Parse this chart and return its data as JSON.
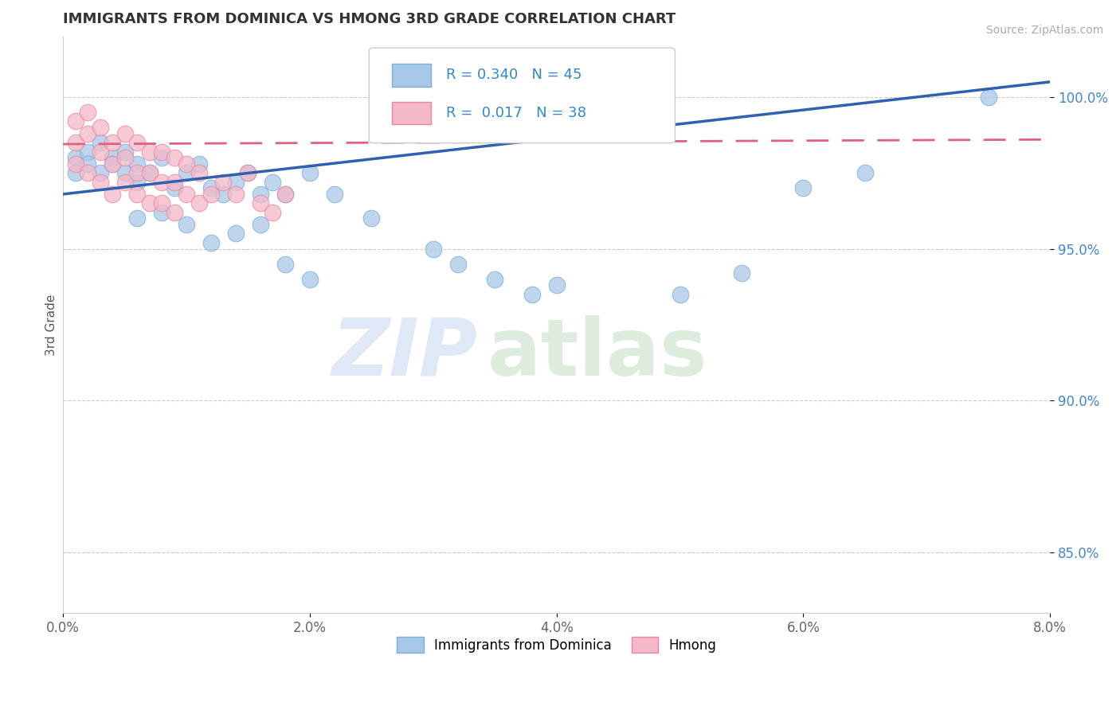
{
  "title": "IMMIGRANTS FROM DOMINICA VS HMONG 3RD GRADE CORRELATION CHART",
  "source": "Source: ZipAtlas.com",
  "ylabel": "3rd Grade",
  "xlim": [
    0.0,
    0.08
  ],
  "ylim": [
    0.83,
    1.02
  ],
  "yticks": [
    0.85,
    0.9,
    0.95,
    1.0
  ],
  "ytick_labels": [
    "85.0%",
    "90.0%",
    "95.0%",
    "100.0%"
  ],
  "xticks": [
    0.0,
    0.02,
    0.04,
    0.06,
    0.08
  ],
  "xtick_labels": [
    "0.0%",
    "2.0%",
    "4.0%",
    "6.0%",
    "8.0%"
  ],
  "legend_labels": [
    "Immigrants from Dominica",
    "Hmong"
  ],
  "r_blue": 0.34,
  "n_blue": 45,
  "r_pink": 0.017,
  "n_pink": 38,
  "blue_color": "#a8c8e8",
  "blue_edge": "#7aafd4",
  "pink_color": "#f4b8c8",
  "pink_edge": "#e888a0",
  "trend_blue": "#3060b0",
  "trend_pink": "#e06080",
  "blue_points_x": [
    0.001,
    0.001,
    0.002,
    0.002,
    0.003,
    0.003,
    0.004,
    0.004,
    0.005,
    0.005,
    0.006,
    0.006,
    0.007,
    0.008,
    0.009,
    0.01,
    0.011,
    0.012,
    0.013,
    0.014,
    0.015,
    0.016,
    0.017,
    0.018,
    0.006,
    0.008,
    0.01,
    0.012,
    0.014,
    0.016,
    0.018,
    0.02,
    0.02,
    0.022,
    0.025,
    0.03,
    0.032,
    0.035,
    0.038,
    0.04,
    0.05,
    0.055,
    0.06,
    0.065,
    0.075
  ],
  "blue_points_y": [
    0.98,
    0.975,
    0.982,
    0.978,
    0.985,
    0.975,
    0.98,
    0.978,
    0.982,
    0.975,
    0.978,
    0.972,
    0.975,
    0.98,
    0.97,
    0.975,
    0.978,
    0.97,
    0.968,
    0.972,
    0.975,
    0.968,
    0.972,
    0.968,
    0.96,
    0.962,
    0.958,
    0.952,
    0.955,
    0.958,
    0.945,
    0.94,
    0.975,
    0.968,
    0.96,
    0.95,
    0.945,
    0.94,
    0.935,
    0.938,
    0.935,
    0.942,
    0.97,
    0.975,
    1.0
  ],
  "pink_points_x": [
    0.001,
    0.001,
    0.001,
    0.002,
    0.002,
    0.002,
    0.003,
    0.003,
    0.003,
    0.004,
    0.004,
    0.004,
    0.005,
    0.005,
    0.005,
    0.006,
    0.006,
    0.006,
    0.007,
    0.007,
    0.007,
    0.008,
    0.008,
    0.008,
    0.009,
    0.009,
    0.009,
    0.01,
    0.01,
    0.011,
    0.011,
    0.012,
    0.013,
    0.014,
    0.015,
    0.016,
    0.017,
    0.018
  ],
  "pink_points_y": [
    0.992,
    0.985,
    0.978,
    0.995,
    0.988,
    0.975,
    0.99,
    0.982,
    0.972,
    0.985,
    0.978,
    0.968,
    0.988,
    0.98,
    0.972,
    0.985,
    0.975,
    0.968,
    0.982,
    0.975,
    0.965,
    0.982,
    0.972,
    0.965,
    0.98,
    0.972,
    0.962,
    0.978,
    0.968,
    0.975,
    0.965,
    0.968,
    0.972,
    0.968,
    0.975,
    0.965,
    0.962,
    0.968
  ],
  "trend_blue_x0": 0.0,
  "trend_blue_y0": 0.968,
  "trend_blue_x1": 0.08,
  "trend_blue_y1": 1.005,
  "trend_pink_x0": 0.0,
  "trend_pink_y0": 0.9845,
  "trend_pink_x1": 0.08,
  "trend_pink_y1": 0.986
}
